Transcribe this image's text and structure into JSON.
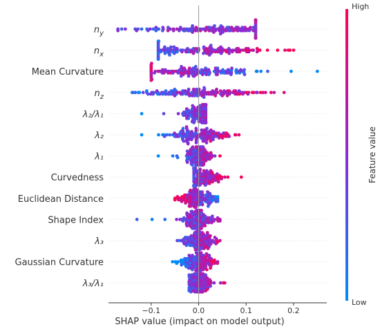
{
  "chart_data": {
    "type": "scatter",
    "subtype": "shap-beeswarm",
    "xlabel": "SHAP value (impact on model output)",
    "ylabel": "",
    "xlim": [
      -0.19,
      0.27
    ],
    "x_ticks": [
      "−0.1",
      "0.0",
      "0.1",
      "0.2"
    ],
    "x_tick_values": [
      -0.1,
      0.0,
      0.1,
      0.2
    ],
    "zero_line": 0.0,
    "grid": false,
    "colorbar": {
      "title": "Feature value",
      "high_label": "High",
      "low_label": "Low",
      "low_color": "#008bfb",
      "high_color": "#ff0052"
    },
    "features": [
      {
        "name": "n",
        "sub": "y",
        "min": -0.17,
        "max": 0.12,
        "center": 0.03,
        "width": 0.17,
        "corr": 0.2
      },
      {
        "name": "n",
        "sub": "x",
        "min": -0.085,
        "max": 0.2,
        "center": 0.0,
        "width": 0.16,
        "corr": 0.6
      },
      {
        "name": "Mean Curvature",
        "sub": "",
        "min": -0.1,
        "max": 0.25,
        "center": -0.01,
        "width": 0.14,
        "corr": -0.8
      },
      {
        "name": "n",
        "sub": "z",
        "min": -0.14,
        "max": 0.18,
        "center": 0.0,
        "width": 0.15,
        "corr": 0.5
      },
      {
        "name": "λ₂/λ₁",
        "sub": "",
        "min": -0.12,
        "max": 0.015,
        "center": 0.005,
        "width": 0.04,
        "corr": 0.7
      },
      {
        "name": "λ₂",
        "sub": "",
        "min": -0.12,
        "max": 0.085,
        "center": 0.0,
        "width": 0.08,
        "corr": 0.7
      },
      {
        "name": "λ₁",
        "sub": "",
        "min": -0.085,
        "max": 0.045,
        "center": 0.0,
        "width": 0.03,
        "corr": 0.6
      },
      {
        "name": "Curvedness",
        "sub": "",
        "min": -0.01,
        "max": 0.09,
        "center": 0.0,
        "width": 0.06,
        "corr": 0.8
      },
      {
        "name": "Euclidean Distance",
        "sub": "",
        "min": -0.05,
        "max": 0.04,
        "center": 0.0,
        "width": 0.05,
        "corr": -0.6
      },
      {
        "name": "Shape Index",
        "sub": "",
        "min": -0.13,
        "max": 0.045,
        "center": 0.0,
        "width": 0.04,
        "corr": 0.4
      },
      {
        "name": "λ₃",
        "sub": "",
        "min": -0.045,
        "max": 0.045,
        "center": 0.0,
        "width": 0.04,
        "corr": 0.3
      },
      {
        "name": "Gaussian Curvature",
        "sub": "",
        "min": -0.055,
        "max": 0.04,
        "center": 0.0,
        "width": 0.04,
        "corr": 0.7
      },
      {
        "name": "λ₃/λ₁",
        "sub": "",
        "min": -0.02,
        "max": 0.055,
        "center": 0.0,
        "width": 0.03,
        "corr": 0.4
      }
    ]
  }
}
